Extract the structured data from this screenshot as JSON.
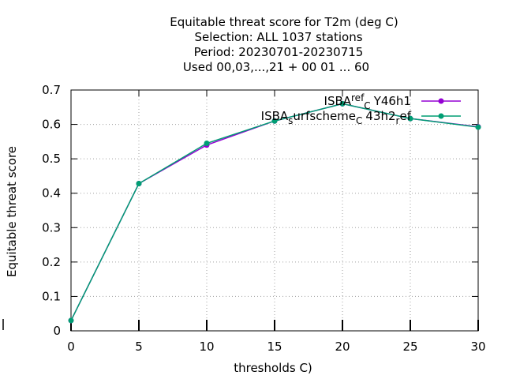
{
  "chart_data": {
    "type": "line",
    "title_lines": [
      "Equitable threat score  for T2m (deg C)",
      "Selection: ALL   1037 stations",
      "Period: 20230701-20230715",
      "Used  00,03,...,21  + 00 01 ... 60"
    ],
    "xlabel": "thresholds C)",
    "ylabel": "Equitable threat score",
    "xlim": [
      0,
      30
    ],
    "ylim": [
      0,
      0.7
    ],
    "x_ticks": [
      0,
      5,
      10,
      15,
      20,
      25,
      30
    ],
    "y_ticks": [
      0,
      0.1,
      0.2,
      0.3,
      0.4,
      0.5,
      0.6,
      0.7
    ],
    "x_tick_labels": [
      "0",
      "5",
      "10",
      "15",
      "20",
      "25",
      "30"
    ],
    "y_tick_labels": [
      "0",
      "0.1",
      "0.2",
      "0.3",
      "0.4",
      "0.5",
      "0.6",
      "0.7"
    ],
    "grid": true,
    "legend_position": "top-right",
    "x": [
      0,
      5,
      10,
      15,
      20,
      25,
      30
    ],
    "series": [
      {
        "legend_parts": [
          "ISBA",
          "ref",
          "C",
          "Y46h1"
        ],
        "color": "#9400d3",
        "values": [
          0.03,
          0.428,
          0.54,
          0.61,
          0.66,
          0.617,
          0.593
        ]
      },
      {
        "legend_parts": [
          "ISBA",
          "s",
          "urfscheme",
          "C",
          "43h2",
          "r",
          "ef"
        ],
        "color": "#009e73",
        "values": [
          0.03,
          0.428,
          0.545,
          0.61,
          0.66,
          0.617,
          0.592
        ]
      }
    ]
  }
}
